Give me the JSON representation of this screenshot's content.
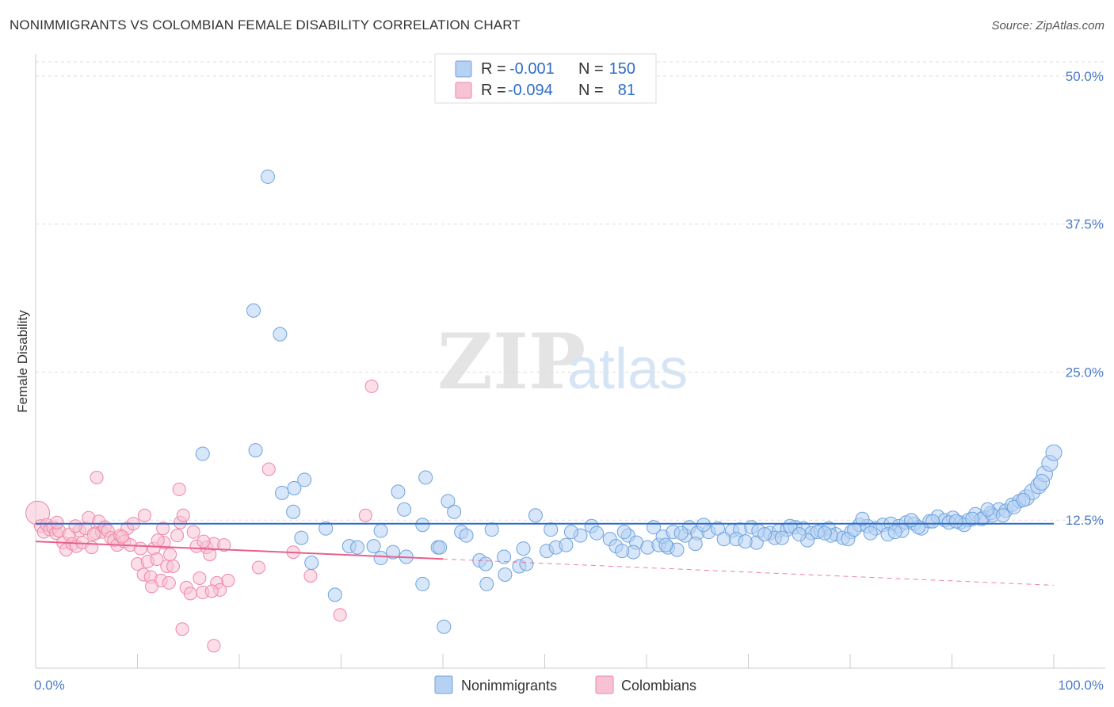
{
  "title": "NONIMMIGRANTS VS COLOMBIAN FEMALE DISABILITY CORRELATION CHART",
  "source": "Source: ZipAtlas.com",
  "watermark": {
    "part1": "ZIP",
    "part2": "atlas"
  },
  "colors": {
    "blue": "#6fa3e0",
    "blue_fill": "#b7d1f2",
    "blue_line": "#2f6cc8",
    "pink": "#ee86a8",
    "pink_fill": "#f7c3d4",
    "pink_line": "#e8608c",
    "grid": "#dddddd",
    "tick_text": "#4a7cc9"
  },
  "legend": {
    "rows": [
      {
        "r_label": "R =",
        "r_value": "-0.001",
        "n_label": "N =",
        "n_value": "150"
      },
      {
        "r_label": "R =",
        "r_value": "-0.094",
        "n_label": "N =",
        "n_value": "81"
      }
    ]
  },
  "bottom_legend": {
    "series1": "Nonimmigrants",
    "series2": "Colombians"
  },
  "chart_data": {
    "type": "scatter",
    "title": "NONIMMIGRANTS VS COLOMBIAN FEMALE DISABILITY CORRELATION CHART",
    "xlabel": "",
    "ylabel": "Female Disability",
    "xlim": [
      0,
      100
    ],
    "ylim": [
      0,
      50
    ],
    "x_tick_labels": [
      "0.0%",
      "100.0%"
    ],
    "y_ticks": [
      12.5,
      25.0,
      37.5,
      50.0
    ],
    "y_tick_labels": [
      "12.5%",
      "25.0%",
      "37.5%",
      "50.0%"
    ],
    "grid": true,
    "series": [
      {
        "name": "Nonimmigrants",
        "r": -0.001,
        "n": 150,
        "trend": {
          "x": [
            0,
            100
          ],
          "y": [
            12.2,
            12.2
          ],
          "solid_until": 100
        },
        "points": [
          [
            22.8,
            41.5
          ],
          [
            21.4,
            30.2
          ],
          [
            24.0,
            28.2
          ],
          [
            16.4,
            18.1
          ],
          [
            21.6,
            18.4
          ],
          [
            26.4,
            15.9
          ],
          [
            25.4,
            15.2
          ],
          [
            24.2,
            14.8
          ],
          [
            38.3,
            16.1
          ],
          [
            35.6,
            14.9
          ],
          [
            40.5,
            14.1
          ],
          [
            36.2,
            13.4
          ],
          [
            25.3,
            13.2
          ],
          [
            41.1,
            13.2
          ],
          [
            49.1,
            12.9
          ],
          [
            38.0,
            12.1
          ],
          [
            28.5,
            11.8
          ],
          [
            33.9,
            11.6
          ],
          [
            41.8,
            11.5
          ],
          [
            44.8,
            11.7
          ],
          [
            26.1,
            11.0
          ],
          [
            30.8,
            10.3
          ],
          [
            31.6,
            10.2
          ],
          [
            33.2,
            10.3
          ],
          [
            39.5,
            10.2
          ],
          [
            35.1,
            9.8
          ],
          [
            36.4,
            9.4
          ],
          [
            33.9,
            9.3
          ],
          [
            43.6,
            9.1
          ],
          [
            44.2,
            8.8
          ],
          [
            46.0,
            9.4
          ],
          [
            47.5,
            8.6
          ],
          [
            48.2,
            8.8
          ],
          [
            39.7,
            10.2
          ],
          [
            42.3,
            11.2
          ],
          [
            38.0,
            7.1
          ],
          [
            27.1,
            8.9
          ],
          [
            29.4,
            6.2
          ],
          [
            44.3,
            7.1
          ],
          [
            40.1,
            3.5
          ],
          [
            46.1,
            7.9
          ],
          [
            47.9,
            10.1
          ],
          [
            50.2,
            9.9
          ],
          [
            51.1,
            10.2
          ],
          [
            50.6,
            11.7
          ],
          [
            52.1,
            10.4
          ],
          [
            53.5,
            11.2
          ],
          [
            52.6,
            11.5
          ],
          [
            54.6,
            12.0
          ],
          [
            55.1,
            11.4
          ],
          [
            56.4,
            10.9
          ],
          [
            57.0,
            10.3
          ],
          [
            58.2,
            11.2
          ],
          [
            59.0,
            10.6
          ],
          [
            60.1,
            10.2
          ],
          [
            60.7,
            11.9
          ],
          [
            61.2,
            10.4
          ],
          [
            62.1,
            10.2
          ],
          [
            63.0,
            10.0
          ],
          [
            63.8,
            11.2
          ],
          [
            64.2,
            11.9
          ],
          [
            65.0,
            11.4
          ],
          [
            66.1,
            11.5
          ],
          [
            67.0,
            11.8
          ],
          [
            68.4,
            11.6
          ],
          [
            69.2,
            11.7
          ],
          [
            70.3,
            11.9
          ],
          [
            71.0,
            11.6
          ],
          [
            72.1,
            11.4
          ],
          [
            73.0,
            11.6
          ],
          [
            73.8,
            11.7
          ],
          [
            74.6,
            11.9
          ],
          [
            75.4,
            11.8
          ],
          [
            76.2,
            11.4
          ],
          [
            77.1,
            11.6
          ],
          [
            77.9,
            11.8
          ],
          [
            78.6,
            11.3
          ],
          [
            79.3,
            11.0
          ],
          [
            80.1,
            11.5
          ],
          [
            80.9,
            12.1
          ],
          [
            81.7,
            12.0
          ],
          [
            82.5,
            11.8
          ],
          [
            83.2,
            12.1
          ],
          [
            84.0,
            12.2
          ],
          [
            84.8,
            12.0
          ],
          [
            85.5,
            12.3
          ],
          [
            86.3,
            12.2
          ],
          [
            87.0,
            11.8
          ],
          [
            87.8,
            12.4
          ],
          [
            88.6,
            12.8
          ],
          [
            89.3,
            12.5
          ],
          [
            90.1,
            12.7
          ],
          [
            90.8,
            12.3
          ],
          [
            91.6,
            12.5
          ],
          [
            92.3,
            13.0
          ],
          [
            93.1,
            12.7
          ],
          [
            93.8,
            13.1
          ],
          [
            94.6,
            13.4
          ],
          [
            95.3,
            13.3
          ],
          [
            95.9,
            13.8
          ],
          [
            96.6,
            14.1
          ],
          [
            97.3,
            14.4
          ],
          [
            97.9,
            14.9
          ],
          [
            98.5,
            15.4
          ],
          [
            99.1,
            16.4
          ],
          [
            99.6,
            17.3
          ],
          [
            100.0,
            18.2
          ],
          [
            72.6,
            11.0
          ],
          [
            74.1,
            12.0
          ],
          [
            81.2,
            12.6
          ],
          [
            85.1,
            11.6
          ],
          [
            89.7,
            12.3
          ],
          [
            92.9,
            12.6
          ],
          [
            96.1,
            13.6
          ],
          [
            98.8,
            15.7
          ],
          [
            58.7,
            9.8
          ],
          [
            61.6,
            11.1
          ],
          [
            64.8,
            10.5
          ],
          [
            67.6,
            10.9
          ],
          [
            70.8,
            10.6
          ],
          [
            75.8,
            10.8
          ],
          [
            78.1,
            11.2
          ],
          [
            83.7,
            11.3
          ],
          [
            86.7,
            11.9
          ],
          [
            88.1,
            12.4
          ],
          [
            91.2,
            12.1
          ],
          [
            94.0,
            12.9
          ],
          [
            97.0,
            14.2
          ],
          [
            57.6,
            9.9
          ],
          [
            62.6,
            11.5
          ],
          [
            65.6,
            12.1
          ],
          [
            68.8,
            10.9
          ],
          [
            71.6,
            11.3
          ],
          [
            76.8,
            11.5
          ],
          [
            79.8,
            10.9
          ],
          [
            82.0,
            11.4
          ],
          [
            86.0,
            12.5
          ],
          [
            93.5,
            13.4
          ],
          [
            95.0,
            12.9
          ],
          [
            57.8,
            11.5
          ],
          [
            61.9,
            10.4
          ],
          [
            63.4,
            11.4
          ],
          [
            69.7,
            10.7
          ],
          [
            73.3,
            11.0
          ],
          [
            75.0,
            11.3
          ],
          [
            77.5,
            11.4
          ],
          [
            80.4,
            11.7
          ],
          [
            84.4,
            11.5
          ],
          [
            90.4,
            12.4
          ],
          [
            92.0,
            12.6
          ]
        ]
      },
      {
        "name": "Colombians",
        "r": -0.094,
        "n": 81,
        "trend": {
          "x": [
            0,
            100
          ],
          "y": [
            10.7,
            7.0
          ],
          "solid_until": 40
        },
        "points": [
          [
            0.2,
            13.1
          ],
          [
            0.5,
            12.0
          ],
          [
            0.8,
            11.5
          ],
          [
            1.1,
            12.1
          ],
          [
            1.4,
            11.7
          ],
          [
            1.7,
            11.9
          ],
          [
            2.0,
            11.4
          ],
          [
            2.3,
            11.6
          ],
          [
            2.7,
            10.6
          ],
          [
            3.0,
            10.0
          ],
          [
            3.3,
            11.3
          ],
          [
            3.6,
            10.5
          ],
          [
            4.0,
            10.3
          ],
          [
            4.3,
            11.6
          ],
          [
            4.6,
            10.6
          ],
          [
            4.9,
            11.8
          ],
          [
            5.2,
            12.7
          ],
          [
            5.5,
            10.2
          ],
          [
            5.9,
            11.4
          ],
          [
            6.2,
            12.4
          ],
          [
            6.5,
            11.5
          ],
          [
            6.8,
            11.9
          ],
          [
            7.1,
            11.6
          ],
          [
            7.4,
            11.0
          ],
          [
            7.7,
            10.8
          ],
          [
            8.0,
            10.4
          ],
          [
            8.3,
            11.2
          ],
          [
            8.7,
            10.7
          ],
          [
            9.0,
            11.8
          ],
          [
            9.3,
            10.4
          ],
          [
            9.6,
            12.2
          ],
          [
            10.0,
            8.8
          ],
          [
            10.3,
            10.1
          ],
          [
            10.6,
            7.9
          ],
          [
            11.0,
            9.0
          ],
          [
            11.3,
            7.7
          ],
          [
            11.6,
            10.1
          ],
          [
            11.9,
            9.2
          ],
          [
            12.3,
            7.4
          ],
          [
            12.6,
            10.6
          ],
          [
            12.9,
            8.6
          ],
          [
            13.2,
            9.6
          ],
          [
            13.5,
            8.6
          ],
          [
            13.9,
            11.2
          ],
          [
            14.2,
            12.3
          ],
          [
            14.5,
            12.9
          ],
          [
            14.8,
            6.8
          ],
          [
            15.2,
            6.3
          ],
          [
            15.5,
            11.5
          ],
          [
            15.8,
            10.3
          ],
          [
            16.1,
            7.6
          ],
          [
            16.4,
            6.4
          ],
          [
            16.8,
            10.2
          ],
          [
            17.1,
            9.6
          ],
          [
            17.5,
            10.5
          ],
          [
            17.8,
            7.2
          ],
          [
            18.1,
            6.6
          ],
          [
            18.5,
            10.4
          ],
          [
            18.9,
            7.4
          ],
          [
            6.0,
            16.1
          ],
          [
            10.7,
            12.9
          ],
          [
            11.4,
            6.9
          ],
          [
            12.0,
            10.8
          ],
          [
            13.1,
            7.2
          ],
          [
            14.1,
            15.1
          ],
          [
            14.4,
            3.3
          ],
          [
            16.5,
            10.7
          ],
          [
            17.3,
            6.5
          ],
          [
            21.9,
            8.5
          ],
          [
            22.9,
            16.8
          ],
          [
            25.3,
            9.8
          ],
          [
            27.0,
            7.8
          ],
          [
            29.9,
            4.5
          ],
          [
            32.4,
            12.9
          ],
          [
            33.0,
            23.8
          ],
          [
            17.5,
            1.9
          ],
          [
            12.5,
            11.8
          ],
          [
            8.5,
            11.1
          ],
          [
            3.9,
            12.0
          ],
          [
            2.1,
            12.3
          ],
          [
            5.7,
            11.3
          ]
        ]
      }
    ]
  }
}
